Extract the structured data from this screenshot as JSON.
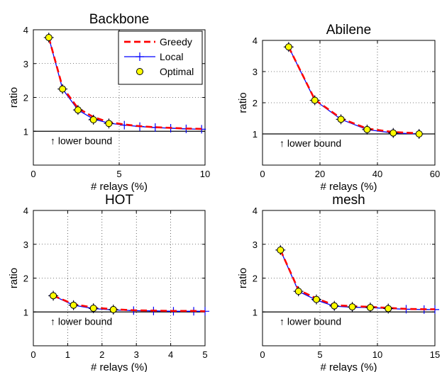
{
  "legend": {
    "entries": [
      {
        "label": "Greedy",
        "color": "#ff0000",
        "style": "dashed"
      },
      {
        "label": "Local",
        "color": "#0000ff",
        "style": "solid-plus"
      },
      {
        "label": "Optimal",
        "color": "#ffff00",
        "style": "circle-marker"
      }
    ],
    "placement": "top-right of first panel"
  },
  "chart_data": [
    {
      "type": "line",
      "title": "Backbone",
      "xlabel": "# relays (%)",
      "ylabel": "ratio",
      "xlim": [
        0,
        10
      ],
      "ylim": [
        0,
        4
      ],
      "xticks": [
        0,
        5,
        10
      ],
      "yticks": [
        1,
        2,
        3,
        4
      ],
      "grid": true,
      "annotation": "↑ lower bound",
      "lower_bound": 1,
      "series": [
        {
          "name": "Greedy",
          "x": [
            0.9,
            1.7,
            2.6,
            3.5,
            4.4,
            5.3,
            6.2,
            7.1,
            8.0,
            8.9,
            9.8
          ],
          "y": [
            3.77,
            2.3,
            1.68,
            1.42,
            1.27,
            1.2,
            1.15,
            1.12,
            1.1,
            1.08,
            1.07
          ]
        },
        {
          "name": "Local",
          "x": [
            0.9,
            1.7,
            2.6,
            3.5,
            4.4,
            5.3,
            6.2,
            7.1,
            8.0,
            8.9,
            9.8
          ],
          "y": [
            3.77,
            2.25,
            1.63,
            1.36,
            1.24,
            1.18,
            1.14,
            1.11,
            1.09,
            1.07,
            1.06
          ]
        },
        {
          "name": "Optimal",
          "x": [
            0.9,
            1.7,
            2.6,
            3.5,
            4.4
          ],
          "y": [
            3.77,
            2.25,
            1.63,
            1.34,
            1.23
          ]
        }
      ]
    },
    {
      "type": "line",
      "title": "Abilene",
      "xlabel": "# relays (%)",
      "ylabel": "ratio",
      "xlim": [
        0,
        60
      ],
      "ylim": [
        0,
        4
      ],
      "xticks": [
        0,
        20,
        40,
        60
      ],
      "yticks": [
        1,
        2,
        3,
        4
      ],
      "grid": true,
      "annotation": "↑ lower bound",
      "lower_bound": 1,
      "series": [
        {
          "name": "Greedy",
          "x": [
            9.1,
            18.2,
            27.3,
            36.4,
            45.5,
            54.5
          ],
          "y": [
            3.79,
            2.1,
            1.5,
            1.17,
            1.06,
            1.02
          ]
        },
        {
          "name": "Local",
          "x": [
            9.1,
            18.2,
            27.3,
            36.4,
            45.5,
            54.5
          ],
          "y": [
            3.79,
            2.08,
            1.47,
            1.14,
            1.03,
            1.0
          ]
        },
        {
          "name": "Optimal",
          "x": [
            9.1,
            18.2,
            27.3,
            36.4,
            45.5,
            54.5
          ],
          "y": [
            3.79,
            2.08,
            1.47,
            1.14,
            1.03,
            1.0
          ]
        }
      ]
    },
    {
      "type": "line",
      "title": "HOT",
      "xlabel": "# relays (%)",
      "ylabel": "ratio",
      "xlim": [
        0,
        5
      ],
      "ylim": [
        0,
        4
      ],
      "xticks": [
        0,
        1,
        2,
        3,
        4,
        5
      ],
      "yticks": [
        1,
        2,
        3,
        4
      ],
      "grid": true,
      "annotation": "↑ lower bound",
      "lower_bound": 1,
      "series": [
        {
          "name": "Greedy",
          "x": [
            0.58,
            1.17,
            1.75,
            2.33,
            2.92,
            3.5,
            4.08,
            4.67,
            5.0
          ],
          "y": [
            1.48,
            1.23,
            1.13,
            1.08,
            1.05,
            1.04,
            1.03,
            1.03,
            1.02
          ]
        },
        {
          "name": "Local",
          "x": [
            0.58,
            1.17,
            1.75,
            2.33,
            2.92,
            3.5,
            4.08,
            4.67,
            5.0
          ],
          "y": [
            1.48,
            1.2,
            1.1,
            1.06,
            1.04,
            1.03,
            1.02,
            1.02,
            1.02
          ]
        },
        {
          "name": "Optimal",
          "x": [
            0.58,
            1.17,
            1.75,
            2.33
          ],
          "y": [
            1.48,
            1.2,
            1.11,
            1.07
          ]
        }
      ]
    },
    {
      "type": "line",
      "title": "mesh",
      "xlabel": "# relays (%)",
      "ylabel": "ratio",
      "xlim": [
        0,
        15
      ],
      "ylim": [
        0,
        4
      ],
      "xticks": [
        0,
        5,
        10,
        15
      ],
      "yticks": [
        1,
        2,
        3,
        4
      ],
      "grid": true,
      "annotation": "↑ lower bound",
      "lower_bound": 1,
      "series": [
        {
          "name": "Greedy",
          "x": [
            1.56,
            3.13,
            4.69,
            6.25,
            7.81,
            9.38,
            10.94,
            12.5,
            14.06,
            15.0
          ],
          "y": [
            2.83,
            1.65,
            1.4,
            1.2,
            1.17,
            1.15,
            1.12,
            1.09,
            1.08,
            1.08
          ]
        },
        {
          "name": "Local",
          "x": [
            1.56,
            3.13,
            4.69,
            6.25,
            7.81,
            9.38,
            10.94,
            12.5,
            14.06,
            15.0
          ],
          "y": [
            2.83,
            1.61,
            1.35,
            1.17,
            1.14,
            1.13,
            1.1,
            1.08,
            1.07,
            1.07
          ]
        },
        {
          "name": "Optimal",
          "x": [
            1.56,
            3.13,
            4.69,
            6.25,
            7.81,
            9.38,
            10.94
          ],
          "y": [
            2.83,
            1.61,
            1.37,
            1.18,
            1.15,
            1.13,
            1.1
          ]
        }
      ]
    }
  ]
}
